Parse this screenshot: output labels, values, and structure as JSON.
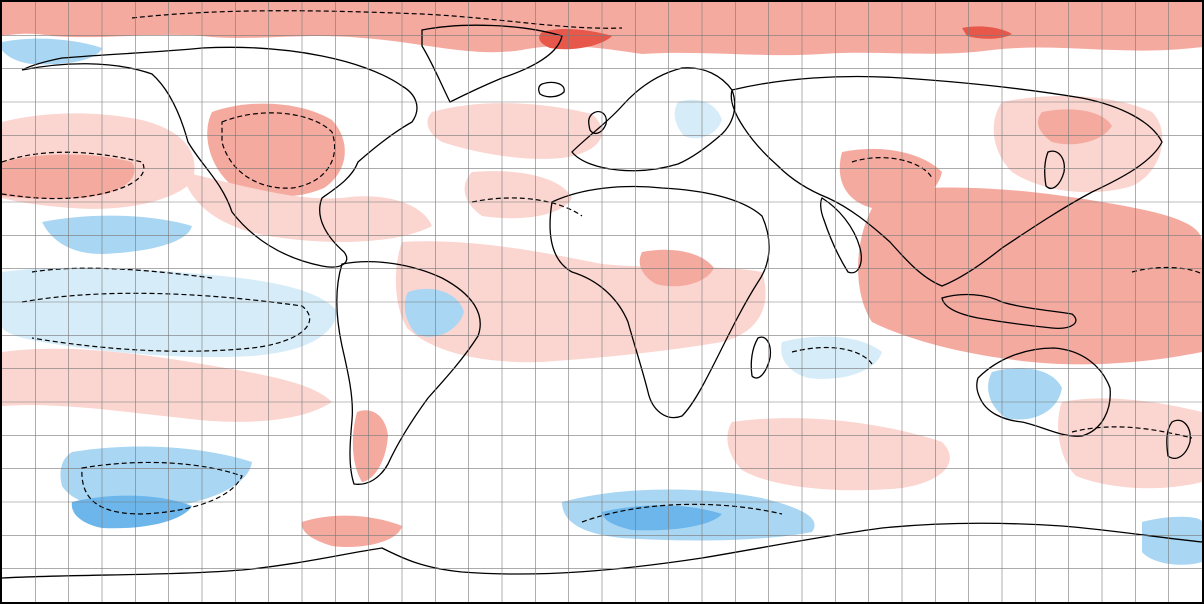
{
  "map": {
    "projection": "equirectangular",
    "graticule_spacing_deg": 10,
    "colors": {
      "ocean_background": "#ffffff",
      "warm_light": "#fbd5cf",
      "warm_medium": "#f5aaa0",
      "warm_strong": "#e8584a",
      "cool_light": "#d6ecf8",
      "cool_medium": "#a9d6f3",
      "cool_strong": "#6cb6eb",
      "coastline": "#000000",
      "contour_dashed": "#000000",
      "graticule": "#7a7a7a"
    },
    "legend": [],
    "title": ""
  }
}
